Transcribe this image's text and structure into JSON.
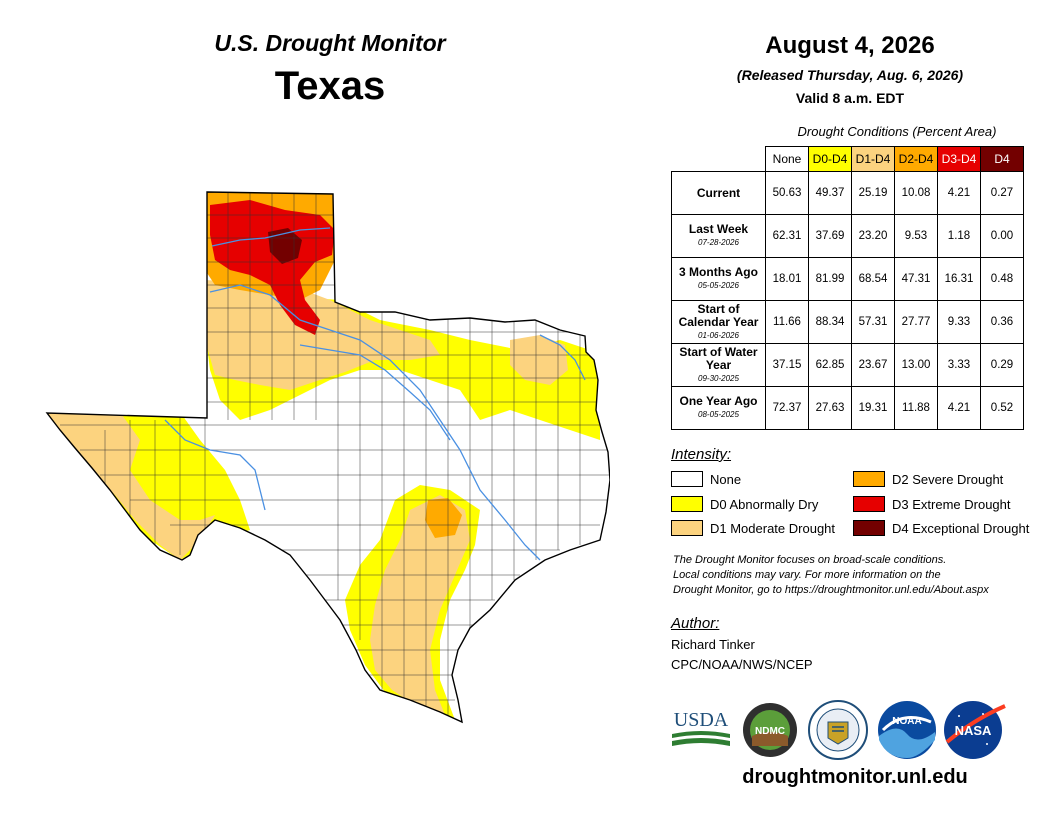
{
  "header": {
    "product": "U.S. Drought Monitor",
    "state": "Texas",
    "date": "August 4, 2026",
    "released": "(Released Thursday, Aug. 6, 2026)",
    "valid": "Valid 8 a.m. EDT"
  },
  "table": {
    "caption": "Drought Conditions (Percent Area)",
    "columns": [
      {
        "label": "None",
        "color": "#ffffff",
        "text_color": "#000000"
      },
      {
        "label": "D0-D4",
        "color": "#ffff00",
        "text_color": "#000000"
      },
      {
        "label": "D1-D4",
        "color": "#fcd37f",
        "text_color": "#000000"
      },
      {
        "label": "D2-D4",
        "color": "#ffaa00",
        "text_color": "#000000"
      },
      {
        "label": "D3-D4",
        "color": "#e60000",
        "text_color": "#ffffff"
      },
      {
        "label": "D4",
        "color": "#730000",
        "text_color": "#ffffff"
      }
    ],
    "rows": [
      {
        "label": "Current",
        "sub": "",
        "values": [
          "50.63",
          "49.37",
          "25.19",
          "10.08",
          "4.21",
          "0.27"
        ]
      },
      {
        "label": "Last Week",
        "sub": "07-28-2026",
        "values": [
          "62.31",
          "37.69",
          "23.20",
          "9.53",
          "1.18",
          "0.00"
        ]
      },
      {
        "label": "3 Months Ago",
        "sub": "05-05-2026",
        "values": [
          "18.01",
          "81.99",
          "68.54",
          "47.31",
          "16.31",
          "0.48"
        ]
      },
      {
        "label": "Start of Calendar Year",
        "sub": "01-06-2026",
        "values": [
          "11.66",
          "88.34",
          "57.31",
          "27.77",
          "9.33",
          "0.36"
        ]
      },
      {
        "label": "Start of Water Year",
        "sub": "09-30-2025",
        "values": [
          "37.15",
          "62.85",
          "23.67",
          "13.00",
          "3.33",
          "0.29"
        ]
      },
      {
        "label": "One Year Ago",
        "sub": "08-05-2025",
        "values": [
          "72.37",
          "27.63",
          "19.31",
          "11.88",
          "4.21",
          "0.52"
        ]
      }
    ]
  },
  "legend": {
    "title": "Intensity:",
    "items": [
      {
        "label": "None",
        "color": "#ffffff"
      },
      {
        "label": "D0 Abnormally Dry",
        "color": "#ffff00"
      },
      {
        "label": "D1 Moderate Drought",
        "color": "#fcd37f"
      },
      {
        "label": "D2 Severe Drought",
        "color": "#ffaa00"
      },
      {
        "label": "D3 Extreme Drought",
        "color": "#e60000"
      },
      {
        "label": "D4 Exceptional Drought",
        "color": "#730000"
      }
    ]
  },
  "note": {
    "line1": "The Drought Monitor focuses on broad-scale conditions.",
    "line2": "Local conditions may vary. For more information on the",
    "line3": "Drought Monitor, go to https://droughtmonitor.unl.edu/About.aspx"
  },
  "author": {
    "title": "Author:",
    "name": "Richard Tinker",
    "org": "CPC/NOAA/NWS/NCEP"
  },
  "logos": {
    "usda": "USDA",
    "ndmc": "NDMC",
    "noaa": "NOAA",
    "nasa": "NASA"
  },
  "website": "droughtmonitor.unl.edu"
}
